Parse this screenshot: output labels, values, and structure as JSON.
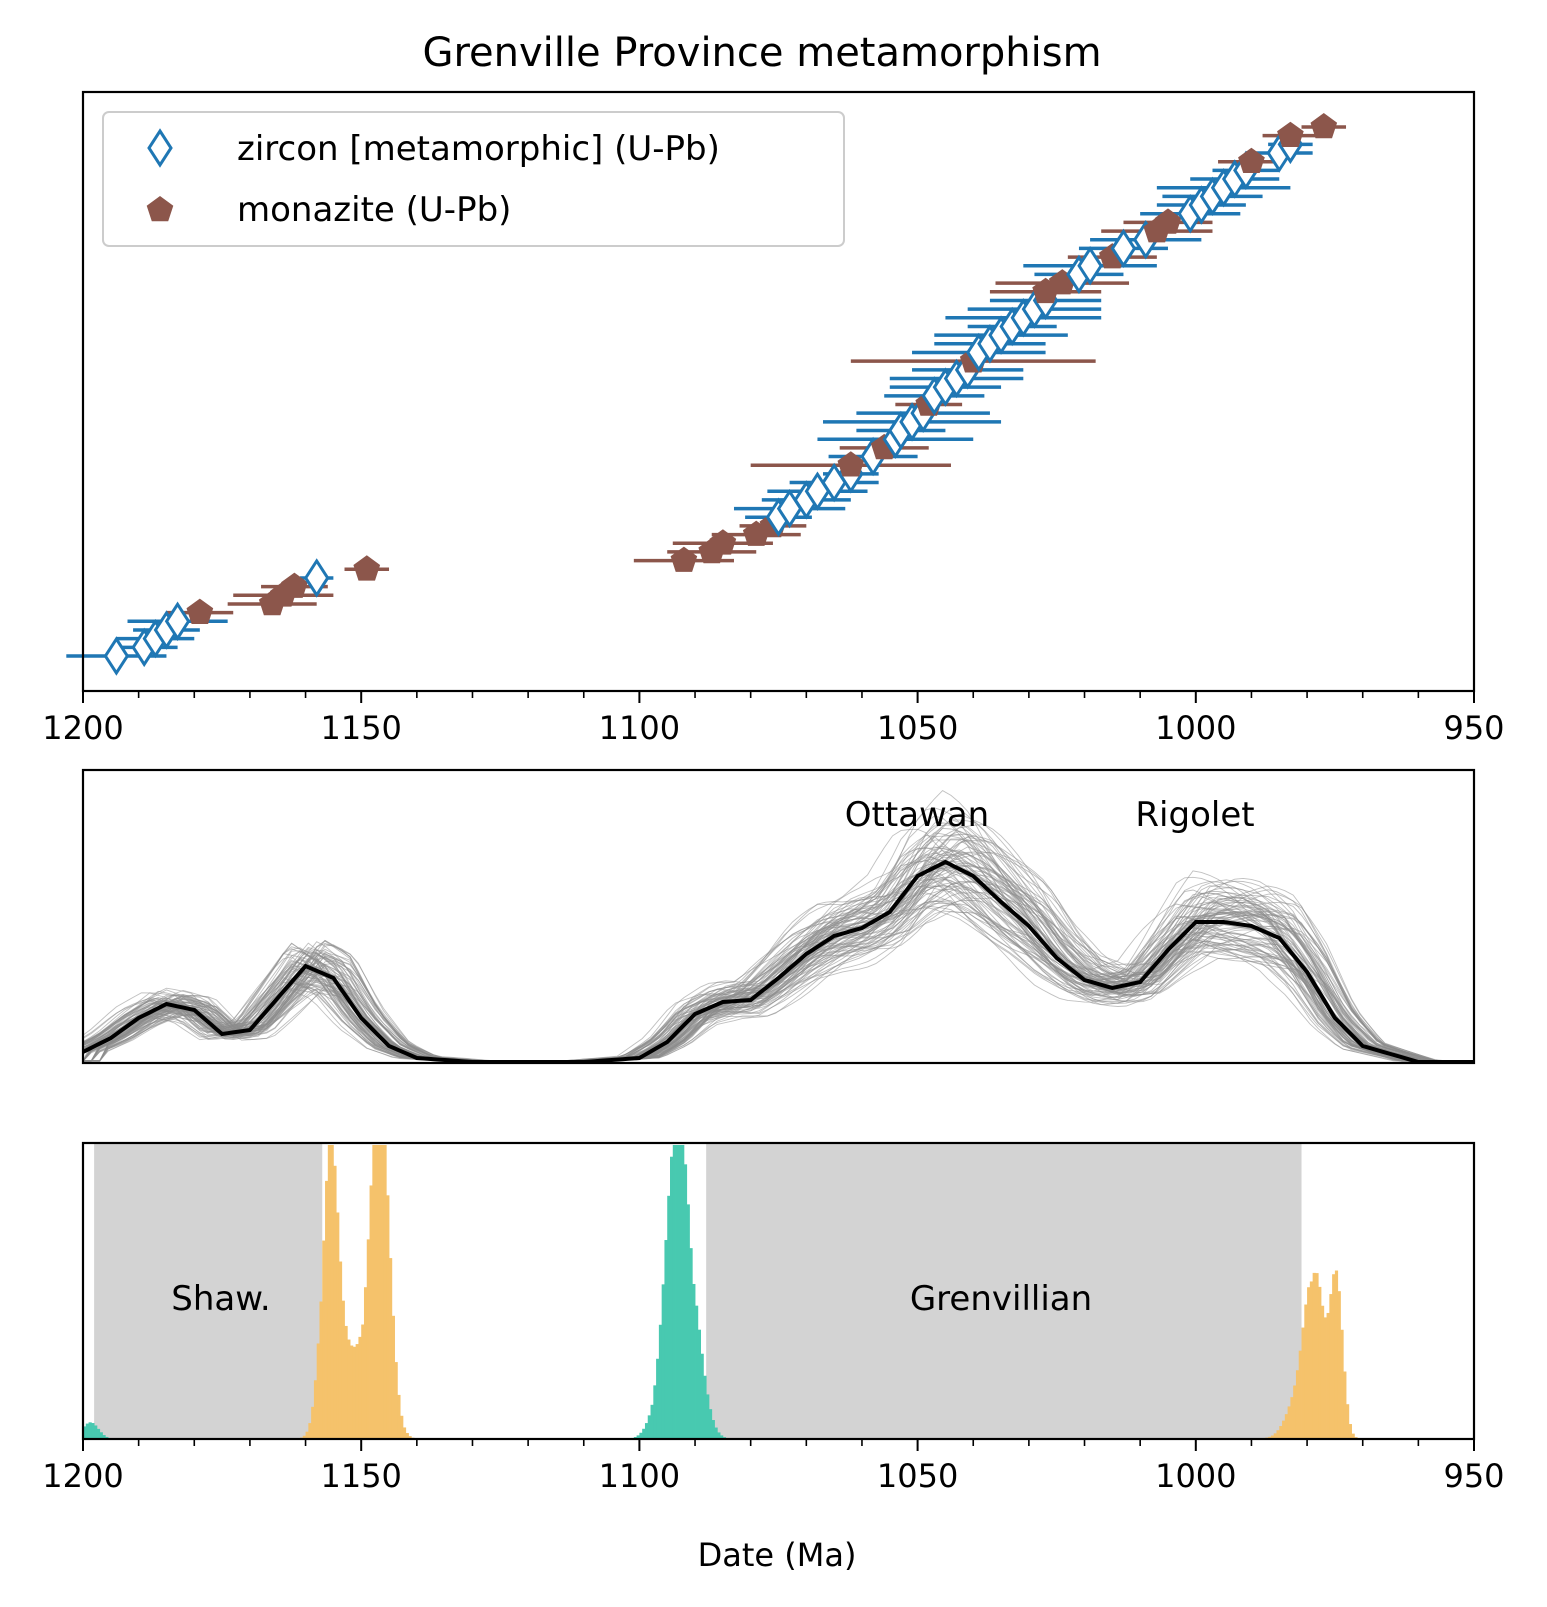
{
  "chart_data": [
    {
      "type": "scatter",
      "title": "Grenville Province metamorphism",
      "xlim": [
        1200,
        950
      ],
      "x_ticks": [
        "1200",
        "1150",
        "1100",
        "1050",
        "1000",
        "950"
      ],
      "y_ticks_shown": false,
      "legend": {
        "placement": "top-left",
        "entries": [
          {
            "label": "zircon [metamorphic] (U-Pb)",
            "marker": "diamond-open",
            "color": "#1f77b4"
          },
          {
            "label": "monazite (U-Pb)",
            "marker": "pentagon-filled",
            "color": "#8c564b"
          }
        ]
      },
      "series": [
        {
          "name": "zircon [metamorphic] (U-Pb)",
          "x": [
            1194,
            1189,
            1187,
            1185,
            1183,
            1158,
            1075,
            1073,
            1070,
            1068,
            1065,
            1062,
            1058,
            1054,
            1053,
            1051,
            1049,
            1047,
            1045,
            1043,
            1041,
            1039,
            1037,
            1035,
            1033,
            1031,
            1029,
            1027,
            1021,
            1019,
            1013,
            1009,
            1001,
            999,
            997,
            995,
            993,
            991,
            985,
            983
          ],
          "xerr": [
            9,
            6,
            7,
            6,
            9,
            3,
            6,
            10,
            8,
            9,
            8,
            5,
            8,
            14,
            8,
            16,
            12,
            9,
            10,
            12,
            10,
            12,
            10,
            12,
            8,
            14,
            12,
            10,
            8,
            12,
            8,
            10,
            9,
            8,
            9,
            12,
            8,
            6,
            6,
            4
          ]
        },
        {
          "name": "monazite (U-Pb)",
          "x": [
            1179,
            1166,
            1164,
            1162,
            1149,
            1092,
            1087,
            1085,
            1079,
            1076,
            1062,
            1056,
            1048,
            1040,
            1027,
            1024,
            1015,
            1007,
            1005,
            990,
            983,
            977
          ],
          "xerr": [
            6,
            8,
            9,
            6,
            4,
            9,
            8,
            9,
            8,
            6,
            18,
            8,
            6,
            22,
            10,
            12,
            8,
            10,
            8,
            6,
            5,
            4
          ]
        }
      ]
    },
    {
      "type": "line",
      "xlim": [
        1200,
        950
      ],
      "y_ticks_shown": false,
      "annotations": [
        "Ottawan",
        "Rigolet"
      ],
      "series": [
        {
          "name": "",
          "color": "#000000",
          "x": [
            1200,
            1195,
            1190,
            1185,
            1180,
            1175,
            1170,
            1165,
            1160,
            1155,
            1150,
            1145,
            1140,
            1130,
            1120,
            1110,
            1100,
            1095,
            1090,
            1085,
            1080,
            1075,
            1070,
            1065,
            1060,
            1055,
            1050,
            1045,
            1040,
            1035,
            1030,
            1025,
            1020,
            1015,
            1010,
            1005,
            1000,
            995,
            990,
            985,
            980,
            975,
            970,
            960,
            950
          ],
          "y": [
            0.05,
            0.12,
            0.22,
            0.29,
            0.26,
            0.14,
            0.16,
            0.32,
            0.48,
            0.42,
            0.22,
            0.08,
            0.02,
            0.0,
            0.0,
            0.0,
            0.02,
            0.1,
            0.24,
            0.3,
            0.31,
            0.42,
            0.54,
            0.63,
            0.67,
            0.75,
            0.93,
            1.0,
            0.93,
            0.8,
            0.68,
            0.52,
            0.41,
            0.37,
            0.4,
            0.56,
            0.7,
            0.7,
            0.68,
            0.62,
            0.45,
            0.22,
            0.08,
            0.0,
            0.0
          ]
        }
      ]
    },
    {
      "type": "bar",
      "xlim": [
        1200,
        950
      ],
      "x_ticks": [
        "1200",
        "1150",
        "1100",
        "1050",
        "1000",
        "950"
      ],
      "xlabel": "Date (Ma)",
      "y_ticks_shown": false,
      "annotations": [
        "Shaw.",
        "Grenvillian"
      ],
      "shaded_intervals": [
        {
          "label": "Shaw.",
          "from": 1198,
          "to": 1157,
          "color": "#d3d3d3"
        },
        {
          "label": "Grenvillian",
          "from": 1088,
          "to": 981,
          "color": "#d3d3d3"
        }
      ],
      "series": [
        {
          "name": "",
          "color": "#48c9b0",
          "peaks": [
            {
              "center": 1093,
              "width": 2.5,
              "height": 1.0
            },
            {
              "center": 1199,
              "width": 1.5,
              "height": 0.05
            }
          ]
        },
        {
          "name": "",
          "color": "#f5c26b",
          "peaks": [
            {
              "center": 1156,
              "width": 1.4,
              "height": 0.88
            },
            {
              "center": 1147,
              "width": 1.8,
              "height": 1.0
            },
            {
              "center": 1152,
              "width": 3.0,
              "height": 0.26
            },
            {
              "center": 979,
              "width": 1.5,
              "height": 0.52
            },
            {
              "center": 975,
              "width": 1.2,
              "height": 0.48
            },
            {
              "center": 981,
              "width": 2.5,
              "height": 0.15
            }
          ]
        }
      ]
    }
  ]
}
